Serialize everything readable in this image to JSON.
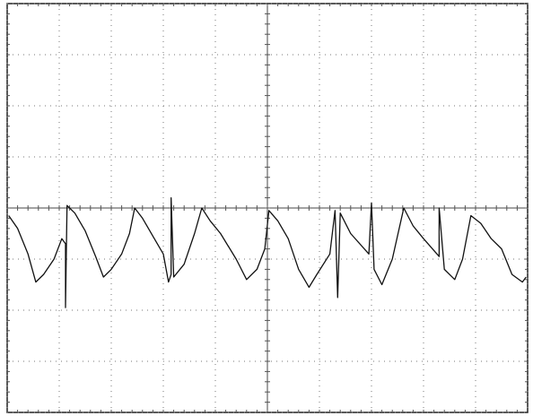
{
  "chart_data": {
    "type": "line",
    "xlim": [
      0,
      10
    ],
    "ylim": [
      -4,
      4
    ],
    "xticks": [
      0,
      1,
      2,
      3,
      4,
      5,
      6,
      7,
      8,
      9,
      10
    ],
    "yticks": [
      -4,
      -3,
      -2,
      -1,
      0,
      1,
      2,
      3,
      4
    ],
    "grid": true,
    "color": "#111111",
    "x": [
      0.03,
      0.2,
      0.4,
      0.55,
      0.7,
      0.9,
      1.05,
      1.12,
      1.12,
      1.15,
      1.3,
      1.5,
      1.7,
      1.85,
      2.0,
      2.2,
      2.35,
      2.45,
      2.6,
      2.8,
      3.0,
      3.1,
      3.15,
      3.15,
      3.2,
      3.4,
      3.6,
      3.74,
      3.9,
      4.1,
      4.4,
      4.6,
      4.8,
      4.95,
      5.03,
      5.2,
      5.4,
      5.6,
      5.8,
      5.95,
      6.2,
      6.3,
      6.35,
      6.4,
      6.6,
      6.95,
      7.0,
      7.05,
      7.2,
      7.4,
      7.62,
      7.8,
      8.0,
      8.3,
      8.3,
      8.4,
      8.6,
      8.75,
      8.91,
      9.1,
      9.3,
      9.5,
      9.7,
      9.9,
      9.97
    ],
    "values": [
      -0.15,
      -0.4,
      -0.9,
      -1.45,
      -1.3,
      -1.0,
      -0.6,
      -0.7,
      -1.95,
      0.05,
      -0.1,
      -0.45,
      -0.95,
      -1.35,
      -1.2,
      -0.9,
      -0.5,
      0.0,
      -0.2,
      -0.55,
      -0.9,
      -1.45,
      -1.3,
      0.2,
      -1.35,
      -1.1,
      -0.5,
      0.0,
      -0.25,
      -0.5,
      -1.0,
      -1.4,
      -1.2,
      -0.8,
      -0.05,
      -0.25,
      -0.6,
      -1.2,
      -1.55,
      -1.3,
      -0.9,
      -0.05,
      -1.75,
      -0.1,
      -0.5,
      -0.9,
      0.1,
      -1.2,
      -1.5,
      -1.0,
      0.0,
      -0.35,
      -0.6,
      -0.95,
      0.0,
      -1.2,
      -1.4,
      -1.0,
      -0.15,
      -0.3,
      -0.6,
      -0.8,
      -1.3,
      -1.45,
      -1.35
    ]
  }
}
